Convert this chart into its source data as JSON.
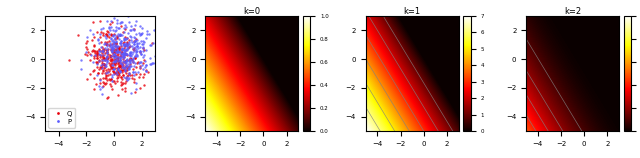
{
  "scatter_seed": 42,
  "n_points": 400,
  "q_color": "#e8000b",
  "p_color": "#5b5bff",
  "scatter_alpha": 0.8,
  "scatter_size": 3,
  "xlim": [
    -5,
    3
  ],
  "ylim": [
    -5,
    3
  ],
  "colormap": "hot",
  "k0_title": "k=0",
  "k1_title": "k=1",
  "k2_title": "k=2",
  "n_grid": 300,
  "legend_labels": [
    "Q",
    "P"
  ],
  "legend_colors": [
    "#e8000b",
    "#5b5bff"
  ],
  "direction": [
    0.6,
    0.8
  ],
  "scatter_yticks": [
    -4,
    -2,
    0,
    2
  ],
  "heatmap_yticks": [
    -4,
    -2,
    0,
    2
  ],
  "heatmap_xticks": [
    -4,
    -2,
    0,
    2
  ]
}
